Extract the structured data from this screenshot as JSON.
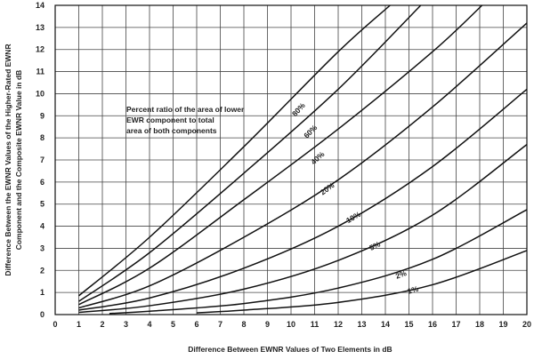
{
  "chart_data": {
    "type": "line",
    "xlabel": "Difference Between EWNR Values of Two Elements in dB",
    "ylabel_line1": "Difference Between the EWNR Values of the Higher-Rated EWNR",
    "ylabel_line2": "Component and the Composite EWNR Value in dB",
    "xlim": [
      0,
      20
    ],
    "ylim": [
      0,
      14
    ],
    "grid": true,
    "x_ticks": [
      "0",
      "1",
      "2",
      "3",
      "4",
      "5",
      "6",
      "7",
      "8",
      "9",
      "10",
      "11",
      "12",
      "13",
      "14",
      "15",
      "16",
      "17",
      "18",
      "19",
      "20"
    ],
    "y_ticks": [
      "0",
      "1",
      "2",
      "3",
      "4",
      "5",
      "6",
      "7",
      "8",
      "9",
      "10",
      "11",
      "12",
      "13",
      "14"
    ],
    "annotation": [
      "Percent ratio of the area of lower",
      "EWR   component to total",
      "area of both components"
    ],
    "series": [
      {
        "name": "80%",
        "x": [
          1,
          4,
          8,
          12,
          14.2
        ],
        "y": [
          0.85,
          3.5,
          7.6,
          11.9,
          14
        ]
      },
      {
        "name": "60%",
        "x": [
          1,
          4,
          8,
          12,
          15.5
        ],
        "y": [
          0.6,
          2.8,
          6.4,
          10.2,
          14
        ]
      },
      {
        "name": "40%",
        "x": [
          1,
          4,
          8,
          12,
          16,
          18.1
        ],
        "y": [
          0.45,
          2.1,
          5.2,
          8.4,
          11.9,
          14
        ]
      },
      {
        "name": "20%",
        "x": [
          1,
          4,
          8,
          12,
          16,
          20
        ],
        "y": [
          0.3,
          1.3,
          3.5,
          6.1,
          9.4,
          13.2
        ]
      },
      {
        "name": "10%",
        "x": [
          1,
          4,
          8,
          12,
          16,
          20
        ],
        "y": [
          0.2,
          0.75,
          2.1,
          4.0,
          6.7,
          10.2
        ]
      },
      {
        "name": "5%",
        "x": [
          1,
          4,
          8,
          12,
          16,
          20
        ],
        "y": [
          0.1,
          0.4,
          1.15,
          2.45,
          4.5,
          7.7
        ]
      },
      {
        "name": "2%",
        "x": [
          2.3,
          4,
          8,
          12,
          16,
          20
        ],
        "y": [
          0.05,
          0.15,
          0.5,
          1.2,
          2.5,
          4.75
        ]
      },
      {
        "name": "1%",
        "x": [
          6,
          8,
          12,
          16,
          20
        ],
        "y": [
          0.08,
          0.2,
          0.55,
          1.35,
          2.9
        ]
      }
    ],
    "curve_labels": [
      {
        "text": "80%",
        "x": 10.4,
        "y": 9.2,
        "rot": -48
      },
      {
        "text": "60%",
        "x": 10.9,
        "y": 8.2,
        "rot": -45
      },
      {
        "text": "40%",
        "x": 11.2,
        "y": 7.0,
        "rot": -42
      },
      {
        "text": "20%",
        "x": 11.6,
        "y": 5.6,
        "rot": -36
      },
      {
        "text": "10%",
        "x": 12.7,
        "y": 4.3,
        "rot": -30
      },
      {
        "text": "5%",
        "x": 13.6,
        "y": 3.0,
        "rot": -26
      },
      {
        "text": "2%",
        "x": 14.7,
        "y": 1.7,
        "rot": -20
      },
      {
        "text": "1%",
        "x": 15.2,
        "y": 1.0,
        "rot": -16
      }
    ]
  }
}
